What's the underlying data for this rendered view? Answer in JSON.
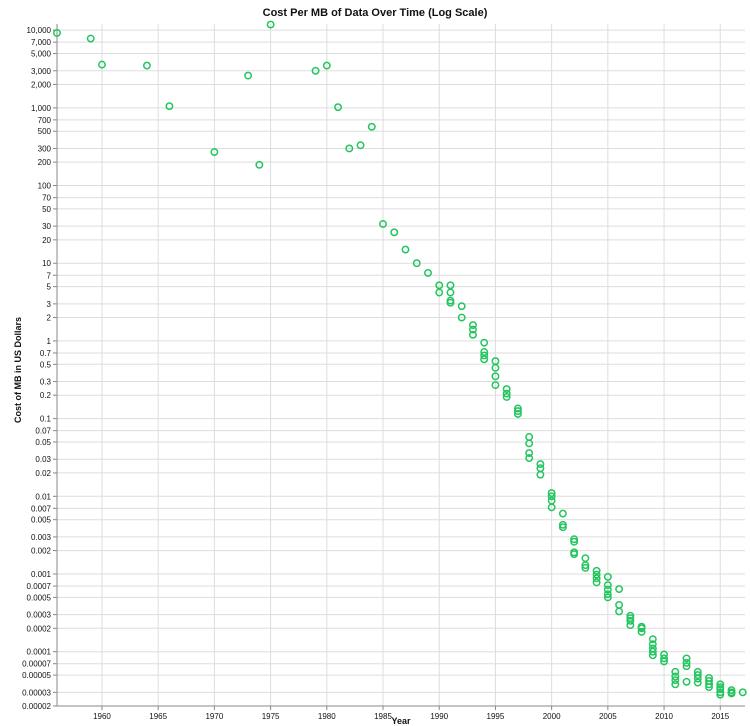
{
  "chart_data": {
    "type": "scatter",
    "title": "Cost Per MB of Data Over Time (Log Scale)",
    "xlabel": "Year",
    "ylabel": "Cost of MB in US Dollars",
    "xlim": [
      1956,
      2017.2
    ],
    "ylim": [
      2e-05,
      12000
    ],
    "y_scale": "log",
    "grid": true,
    "color": "#22c55e",
    "x_ticks": [
      1960,
      1965,
      1970,
      1975,
      1980,
      1985,
      1990,
      1995,
      2000,
      2005,
      2010,
      2015
    ],
    "y_ticks": [
      {
        "v": 10000,
        "label": "10,000"
      },
      {
        "v": 7000,
        "label": "7,000"
      },
      {
        "v": 5000,
        "label": "5,000"
      },
      {
        "v": 3000,
        "label": "3,000"
      },
      {
        "v": 2000,
        "label": "2,000"
      },
      {
        "v": 1000,
        "label": "1,000"
      },
      {
        "v": 700,
        "label": "700"
      },
      {
        "v": 500,
        "label": "500"
      },
      {
        "v": 300,
        "label": "300"
      },
      {
        "v": 200,
        "label": "200"
      },
      {
        "v": 100,
        "label": "100"
      },
      {
        "v": 70,
        "label": "70"
      },
      {
        "v": 50,
        "label": "50"
      },
      {
        "v": 30,
        "label": "30"
      },
      {
        "v": 20,
        "label": "20"
      },
      {
        "v": 10,
        "label": "10"
      },
      {
        "v": 7,
        "label": "7"
      },
      {
        "v": 5,
        "label": "5"
      },
      {
        "v": 3,
        "label": "3"
      },
      {
        "v": 2,
        "label": "2"
      },
      {
        "v": 1,
        "label": "1"
      },
      {
        "v": 0.7,
        "label": "0.7"
      },
      {
        "v": 0.5,
        "label": "0.5"
      },
      {
        "v": 0.3,
        "label": "0.3"
      },
      {
        "v": 0.2,
        "label": "0.2"
      },
      {
        "v": 0.1,
        "label": "0.1"
      },
      {
        "v": 0.07,
        "label": "0.07"
      },
      {
        "v": 0.05,
        "label": "0.05"
      },
      {
        "v": 0.03,
        "label": "0.03"
      },
      {
        "v": 0.02,
        "label": "0.02"
      },
      {
        "v": 0.01,
        "label": "0.01"
      },
      {
        "v": 0.007,
        "label": "0.007"
      },
      {
        "v": 0.005,
        "label": "0.005"
      },
      {
        "v": 0.003,
        "label": "0.003"
      },
      {
        "v": 0.002,
        "label": "0.002"
      },
      {
        "v": 0.001,
        "label": "0.001"
      },
      {
        "v": 0.0007,
        "label": "0.0007"
      },
      {
        "v": 0.0005,
        "label": "0.0005"
      },
      {
        "v": 0.0003,
        "label": "0.0003"
      },
      {
        "v": 0.0002,
        "label": "0.0002"
      },
      {
        "v": 0.0001,
        "label": "0.0001"
      },
      {
        "v": 7e-05,
        "label": "0.00007"
      },
      {
        "v": 5e-05,
        "label": "0.00005"
      },
      {
        "v": 3e-05,
        "label": "0.00003"
      },
      {
        "v": 2e-05,
        "label": "0.00002"
      }
    ],
    "points": [
      [
        1956,
        9200
      ],
      [
        1959,
        7800
      ],
      [
        1960,
        3600
      ],
      [
        1964,
        3500
      ],
      [
        1966,
        1050
      ],
      [
        1970,
        270
      ],
      [
        1973,
        2600
      ],
      [
        1974,
        185
      ],
      [
        1975,
        11800
      ],
      [
        1979,
        3000
      ],
      [
        1980,
        3500
      ],
      [
        1981,
        1020
      ],
      [
        1982,
        300
      ],
      [
        1983,
        330
      ],
      [
        1984,
        570
      ],
      [
        1985,
        32
      ],
      [
        1986,
        25
      ],
      [
        1987,
        15
      ],
      [
        1988,
        10
      ],
      [
        1989,
        7.5
      ],
      [
        1990,
        5.2
      ],
      [
        1990,
        4.2
      ],
      [
        1991,
        5.2
      ],
      [
        1991,
        4.2
      ],
      [
        1991,
        3.3
      ],
      [
        1991,
        3.1
      ],
      [
        1992,
        2.8
      ],
      [
        1992,
        2.0
      ],
      [
        1993,
        1.6
      ],
      [
        1993,
        1.4
      ],
      [
        1993,
        1.2
      ],
      [
        1994,
        0.95
      ],
      [
        1994,
        0.72
      ],
      [
        1994,
        0.65
      ],
      [
        1994,
        0.58
      ],
      [
        1995,
        0.55
      ],
      [
        1995,
        0.45
      ],
      [
        1995,
        0.35
      ],
      [
        1995,
        0.27
      ],
      [
        1996,
        0.24
      ],
      [
        1996,
        0.21
      ],
      [
        1996,
        0.19
      ],
      [
        1997,
        0.135
      ],
      [
        1997,
        0.125
      ],
      [
        1997,
        0.115
      ],
      [
        1998,
        0.058
      ],
      [
        1998,
        0.048
      ],
      [
        1998,
        0.036
      ],
      [
        1998,
        0.031
      ],
      [
        1999,
        0.026
      ],
      [
        1999,
        0.023
      ],
      [
        1999,
        0.019
      ],
      [
        2000,
        0.011
      ],
      [
        2000,
        0.01
      ],
      [
        2000,
        0.0088
      ],
      [
        2000,
        0.0072
      ],
      [
        2001,
        0.006
      ],
      [
        2001,
        0.0043
      ],
      [
        2001,
        0.004
      ],
      [
        2002,
        0.0028
      ],
      [
        2002,
        0.0026
      ],
      [
        2002,
        0.0019
      ],
      [
        2002,
        0.0018
      ],
      [
        2003,
        0.0016
      ],
      [
        2003,
        0.0013
      ],
      [
        2003,
        0.0012
      ],
      [
        2004,
        0.0011
      ],
      [
        2004,
        0.00098
      ],
      [
        2004,
        0.00088
      ],
      [
        2004,
        0.00078
      ],
      [
        2005,
        0.00092
      ],
      [
        2005,
        0.00072
      ],
      [
        2005,
        0.00063
      ],
      [
        2005,
        0.00055
      ],
      [
        2005,
        0.0005
      ],
      [
        2006,
        0.00064
      ],
      [
        2006,
        0.0004
      ],
      [
        2006,
        0.00033
      ],
      [
        2007,
        0.00029
      ],
      [
        2007,
        0.00027
      ],
      [
        2007,
        0.00025
      ],
      [
        2007,
        0.00022
      ],
      [
        2008,
        0.00021
      ],
      [
        2008,
        0.0002
      ],
      [
        2008,
        0.00018
      ],
      [
        2009,
        0.000145
      ],
      [
        2009,
        0.000125
      ],
      [
        2009,
        0.00011
      ],
      [
        2009,
        0.0001
      ],
      [
        2009,
        9e-05
      ],
      [
        2010,
        9.2e-05
      ],
      [
        2010,
        8.2e-05
      ],
      [
        2010,
        7.5e-05
      ],
      [
        2011,
        5.5e-05
      ],
      [
        2011,
        4.8e-05
      ],
      [
        2011,
        4.3e-05
      ],
      [
        2011,
        3.8e-05
      ],
      [
        2012,
        8.2e-05
      ],
      [
        2012,
        7.2e-05
      ],
      [
        2012,
        6.5e-05
      ],
      [
        2012,
        4.1e-05
      ],
      [
        2013,
        5.5e-05
      ],
      [
        2013,
        5e-05
      ],
      [
        2013,
        4.5e-05
      ],
      [
        2013,
        4e-05
      ],
      [
        2014,
        4.6e-05
      ],
      [
        2014,
        4.2e-05
      ],
      [
        2014,
        3.8e-05
      ],
      [
        2014,
        3.5e-05
      ],
      [
        2015,
        3.8e-05
      ],
      [
        2015,
        3.5e-05
      ],
      [
        2015,
        3.3e-05
      ],
      [
        2015,
        3e-05
      ],
      [
        2015,
        2.8e-05
      ],
      [
        2016,
        3.2e-05
      ],
      [
        2016,
        3e-05
      ],
      [
        2016,
        2.9e-05
      ],
      [
        2017,
        3e-05
      ]
    ]
  }
}
